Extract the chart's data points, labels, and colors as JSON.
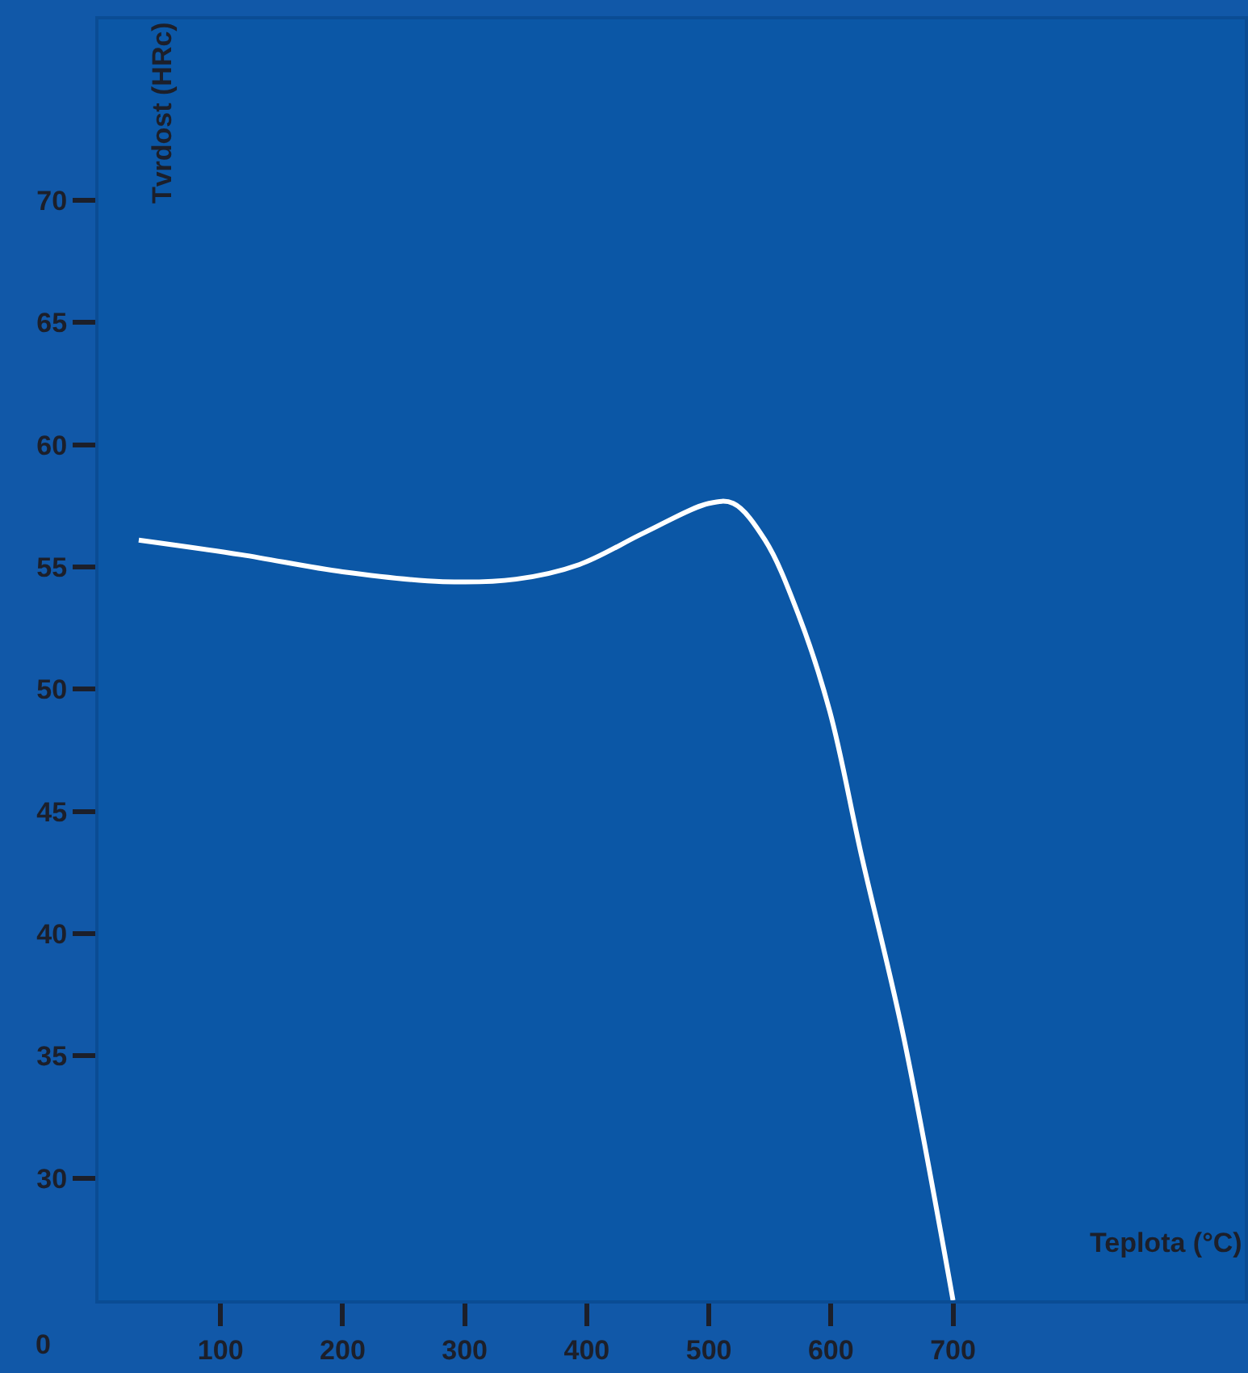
{
  "chart_data": {
    "type": "line",
    "xlabel": "Teplota (°C)",
    "ylabel": "Tvrdost (HRc)",
    "x": [
      33,
      117,
      200,
      282,
      342,
      394,
      447,
      500,
      520,
      546,
      573,
      599,
      625,
      659,
      700
    ],
    "series": [
      {
        "color": "#ffffff",
        "values": [
          56.1,
          55.5,
          54.8,
          54.4,
          54.5,
          55.1,
          56.4,
          57.6,
          57.6,
          56.1,
          53.1,
          49.1,
          43.2,
          35.9,
          25.0
        ]
      }
    ],
    "xlim": [
      0,
      939
    ],
    "ylim": [
      25,
      77.4
    ],
    "xticks": [
      100,
      200,
      300,
      400,
      500,
      600,
      700
    ],
    "yticks": [
      30,
      35,
      40,
      45,
      50,
      55,
      60,
      65,
      70
    ],
    "annotations": [
      "0"
    ],
    "grid": false,
    "legend": false,
    "marker": "none",
    "line_style": "solid"
  }
}
